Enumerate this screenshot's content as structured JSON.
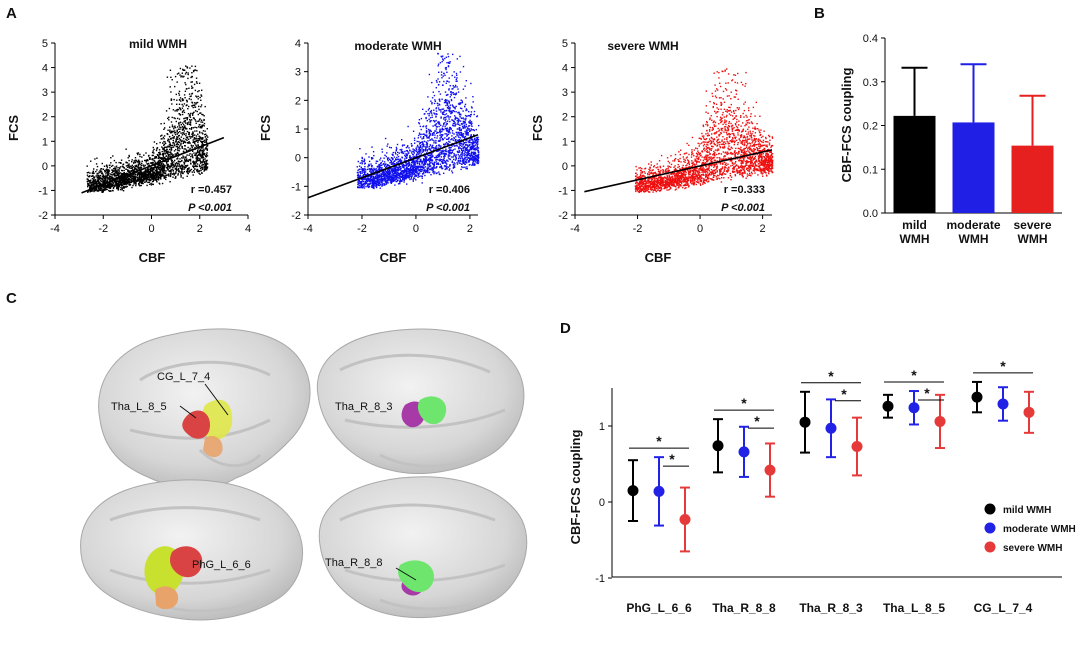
{
  "panels": {
    "A": "A",
    "B": "B",
    "C": "C",
    "D": "D"
  },
  "chart_data": [
    {
      "panel": "A",
      "type": "scatter",
      "title": "mild WMH",
      "xlabel": "CBF",
      "ylabel": "FCS",
      "xlim": [
        -4,
        4
      ],
      "ylim": [
        -2,
        5
      ],
      "xticks": [
        -4,
        -2,
        0,
        2,
        4
      ],
      "yticks": [
        -2,
        -1,
        0,
        1,
        2,
        3,
        4,
        5
      ],
      "color": "#000000",
      "fit_line": {
        "x": [
          -2.9,
          3.0
        ],
        "y": [
          -1.1,
          1.15
        ]
      },
      "cloud": {
        "xmin": -2.7,
        "xmax": 2.3,
        "peak_x": 1.4,
        "peak_y": 4.1
      },
      "r_label": "r =0.457",
      "p_label": "P <0.001"
    },
    {
      "panel": "A",
      "type": "scatter",
      "title": "moderate WMH",
      "xlabel": "CBF",
      "ylabel": "FCS",
      "xlim": [
        -4,
        2.3
      ],
      "ylim": [
        -2,
        4
      ],
      "xticks": [
        -4,
        -2,
        0,
        2
      ],
      "yticks": [
        -2,
        -1,
        0,
        1,
        2,
        3,
        4
      ],
      "color": "#1010ee",
      "fit_line": {
        "x": [
          -4.0,
          2.3
        ],
        "y": [
          -1.4,
          0.8
        ]
      },
      "cloud": {
        "xmin": -2.2,
        "xmax": 2.3,
        "peak_x": 1.1,
        "peak_y": 3.7
      },
      "r_label": "r =0.406",
      "p_label": "P <0.001"
    },
    {
      "panel": "A",
      "type": "scatter",
      "title": "severe WMH",
      "xlabel": "CBF",
      "ylabel": "FCS",
      "xlim": [
        -4,
        2.3
      ],
      "ylim": [
        -2,
        5
      ],
      "xticks": [
        -4,
        -2,
        0,
        2
      ],
      "yticks": [
        -2,
        -1,
        0,
        1,
        2,
        3,
        4,
        5
      ],
      "color": "#ee1010",
      "fit_line": {
        "x": [
          -3.7,
          2.3
        ],
        "y": [
          -1.05,
          0.65
        ]
      },
      "cloud": {
        "xmin": -2.1,
        "xmax": 2.3,
        "peak_x": 0.9,
        "peak_y": 4.0
      },
      "r_label": "r =0.333",
      "p_label": "P <0.001"
    },
    {
      "panel": "B",
      "type": "bar",
      "categories": [
        [
          "mild",
          "WMH"
        ],
        [
          "moderate",
          "WMH"
        ],
        [
          "severe",
          "WMH"
        ]
      ],
      "values": [
        0.222,
        0.207,
        0.154
      ],
      "errors": [
        0.11,
        0.133,
        0.114
      ],
      "colors": [
        "#000000",
        "#1f1fe6",
        "#e61f1f"
      ],
      "ylabel": "CBF-FCS coupling",
      "ylim": [
        0,
        0.4
      ],
      "yticks": [
        "0.0",
        "0.1",
        "0.2",
        "0.3",
        "0.4"
      ]
    },
    {
      "panel": "D",
      "type": "scatter",
      "ylabel": "CBF-FCS coupling",
      "ylim": [
        -1,
        1.5
      ],
      "yticks": [
        -1,
        0,
        1
      ],
      "categories": [
        "PhG_L_6_6",
        "Tha_R_8_8",
        "Tha_R_8_3",
        "Tha_L_8_5",
        "CG_L_7_4"
      ],
      "series": [
        {
          "name": "mild WMH",
          "color": "#000000",
          "values": [
            0.15,
            0.74,
            1.05,
            1.26,
            1.38
          ],
          "errors": [
            0.4,
            0.35,
            0.4,
            0.15,
            0.2
          ]
        },
        {
          "name": "moderate WMH",
          "color": "#2222e6",
          "values": [
            0.14,
            0.66,
            0.97,
            1.24,
            1.29
          ],
          "errors": [
            0.45,
            0.33,
            0.38,
            0.22,
            0.22
          ]
        },
        {
          "name": "severe WMH",
          "color": "#e63a3a",
          "values": [
            -0.23,
            0.42,
            0.73,
            1.06,
            1.18
          ],
          "errors": [
            0.42,
            0.35,
            0.38,
            0.35,
            0.27
          ]
        }
      ],
      "significance": "*"
    }
  ],
  "brain_labels": {
    "cg": "CG_L_7_4",
    "thal": "Tha_L_8_5",
    "thr3": "Tha_R_8_3",
    "phg": "PhG_L_6_6",
    "thr8": "Tha_R_8_8"
  }
}
